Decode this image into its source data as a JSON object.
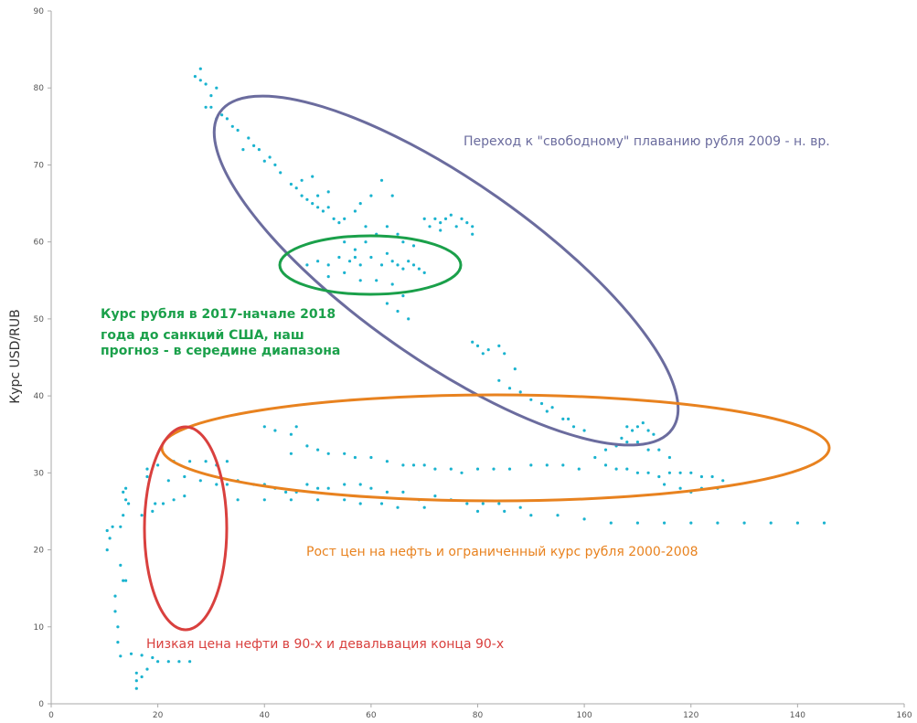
{
  "chart_data": {
    "type": "scatter",
    "title": "",
    "xlabel": "",
    "ylabel": "Курс USD/RUB",
    "xlim": [
      0,
      160
    ],
    "ylim": [
      0,
      90
    ],
    "x_ticks": [
      "0",
      "20",
      "40",
      "60",
      "80",
      "100",
      "120",
      "140",
      "160"
    ],
    "y_ticks": [
      "0",
      "10",
      "20",
      "30",
      "40",
      "50",
      "60",
      "70",
      "80",
      "90"
    ],
    "grid": false,
    "legend": "none",
    "point_color": "#1ab3cf",
    "series": [
      {
        "values": [
          [
            16,
            2
          ],
          [
            16,
            3
          ],
          [
            17,
            3.5
          ],
          [
            16,
            4
          ],
          [
            18,
            4.5
          ],
          [
            20,
            5.5
          ],
          [
            22,
            5.5
          ],
          [
            24,
            5.5
          ],
          [
            26,
            5.5
          ],
          [
            13,
            6.2
          ],
          [
            15,
            6.5
          ],
          [
            17,
            6.3
          ],
          [
            19,
            6
          ],
          [
            12.5,
            8
          ],
          [
            12.5,
            10
          ],
          [
            12,
            12
          ],
          [
            12,
            14
          ],
          [
            13.5,
            16
          ],
          [
            14,
            16
          ],
          [
            13,
            18
          ],
          [
            10.5,
            20
          ],
          [
            11,
            21.5
          ],
          [
            10.5,
            22.5
          ],
          [
            11.5,
            23
          ],
          [
            13,
            23
          ],
          [
            13.5,
            24.5
          ],
          [
            14.5,
            26
          ],
          [
            14,
            26.5
          ],
          [
            13.5,
            27.5
          ],
          [
            14,
            28
          ],
          [
            17,
            24.5
          ],
          [
            19,
            25
          ],
          [
            19.5,
            26
          ],
          [
            21,
            26
          ],
          [
            23,
            26.5
          ],
          [
            25,
            27
          ],
          [
            18,
            29.5
          ],
          [
            18,
            30.5
          ],
          [
            20,
            31
          ],
          [
            23,
            31.5
          ],
          [
            26,
            31.5
          ],
          [
            29,
            31.5
          ],
          [
            31,
            31
          ],
          [
            33,
            31.5
          ],
          [
            22,
            29
          ],
          [
            25,
            29.5
          ],
          [
            28,
            29
          ],
          [
            31,
            28.5
          ],
          [
            33,
            28.5
          ],
          [
            35,
            29
          ],
          [
            38,
            28.5
          ],
          [
            40,
            28.5
          ],
          [
            42,
            28
          ],
          [
            44,
            27.5
          ],
          [
            46,
            27.5
          ],
          [
            48,
            28.5
          ],
          [
            50,
            28
          ],
          [
            52,
            28
          ],
          [
            55,
            28.5
          ],
          [
            58,
            28.5
          ],
          [
            60,
            28
          ],
          [
            63,
            27.5
          ],
          [
            66,
            27.5
          ],
          [
            69,
            26.5
          ],
          [
            72,
            27
          ],
          [
            75,
            26.5
          ],
          [
            78,
            26
          ],
          [
            81,
            26
          ],
          [
            84,
            26
          ],
          [
            88,
            25.5
          ],
          [
            35,
            26.5
          ],
          [
            40,
            26.5
          ],
          [
            45,
            26.5
          ],
          [
            50,
            26.5
          ],
          [
            55,
            26.5
          ],
          [
            58,
            26
          ],
          [
            62,
            26
          ],
          [
            65,
            25.5
          ],
          [
            70,
            25.5
          ],
          [
            80,
            25
          ],
          [
            85,
            25
          ],
          [
            90,
            24.5
          ],
          [
            95,
            24.5
          ],
          [
            100,
            24
          ],
          [
            105,
            23.5
          ],
          [
            110,
            23.5
          ],
          [
            115,
            23.5
          ],
          [
            120,
            23.5
          ],
          [
            125,
            23.5
          ],
          [
            130,
            23.5
          ],
          [
            135,
            23.5
          ],
          [
            140,
            23.5
          ],
          [
            145,
            23.5
          ],
          [
            40,
            36
          ],
          [
            42,
            35.5
          ],
          [
            45,
            35
          ],
          [
            46,
            36
          ],
          [
            45,
            32.5
          ],
          [
            48,
            33.5
          ],
          [
            50,
            33
          ],
          [
            52,
            32.5
          ],
          [
            55,
            32.5
          ],
          [
            57,
            32
          ],
          [
            60,
            32
          ],
          [
            63,
            31.5
          ],
          [
            66,
            31
          ],
          [
            68,
            31
          ],
          [
            70,
            31
          ],
          [
            72,
            30.5
          ],
          [
            75,
            30.5
          ],
          [
            77,
            30
          ],
          [
            80,
            30.5
          ],
          [
            83,
            30.5
          ],
          [
            86,
            30.5
          ],
          [
            90,
            31
          ],
          [
            93,
            31
          ],
          [
            96,
            31
          ],
          [
            99,
            30.5
          ],
          [
            102,
            32
          ],
          [
            104,
            33
          ],
          [
            106,
            33.5
          ],
          [
            108,
            34
          ],
          [
            110,
            34
          ],
          [
            112,
            33
          ],
          [
            114,
            33
          ],
          [
            116,
            32
          ],
          [
            104,
            31
          ],
          [
            106,
            30.5
          ],
          [
            108,
            30.5
          ],
          [
            110,
            30
          ],
          [
            112,
            30
          ],
          [
            114,
            29.5
          ],
          [
            116,
            30
          ],
          [
            118,
            30
          ],
          [
            120,
            30
          ],
          [
            122,
            29.5
          ],
          [
            124,
            29.5
          ],
          [
            126,
            29
          ],
          [
            115,
            28.5
          ],
          [
            118,
            28
          ],
          [
            120,
            27.5
          ],
          [
            122,
            28
          ],
          [
            125,
            28
          ],
          [
            107,
            34.5
          ],
          [
            109,
            35.5
          ],
          [
            110,
            36
          ],
          [
            112,
            35.5
          ],
          [
            113,
            35
          ],
          [
            108,
            36
          ],
          [
            111,
            36.5
          ],
          [
            100,
            35.5
          ],
          [
            98,
            36
          ],
          [
            96,
            37
          ],
          [
            94,
            38.5
          ],
          [
            92,
            39
          ],
          [
            90,
            39.5
          ],
          [
            88,
            40.5
          ],
          [
            86,
            41
          ],
          [
            84,
            42
          ],
          [
            87,
            43.5
          ],
          [
            85,
            45.5
          ],
          [
            84,
            46.5
          ],
          [
            82,
            46
          ],
          [
            80,
            46.5
          ],
          [
            79,
            47
          ],
          [
            81,
            45.5
          ],
          [
            93,
            38
          ],
          [
            97,
            37
          ],
          [
            73,
            62.5
          ],
          [
            74,
            63
          ],
          [
            75,
            63.5
          ],
          [
            76,
            62
          ],
          [
            77,
            63
          ],
          [
            78,
            62.5
          ],
          [
            79,
            62
          ],
          [
            79,
            61
          ],
          [
            73,
            61.5
          ],
          [
            72,
            63
          ],
          [
            71,
            62
          ],
          [
            70,
            63
          ],
          [
            48,
            57
          ],
          [
            50,
            57.5
          ],
          [
            52,
            57
          ],
          [
            54,
            58
          ],
          [
            56,
            57.5
          ],
          [
            57,
            58
          ],
          [
            58,
            57
          ],
          [
            60,
            58
          ],
          [
            62,
            57
          ],
          [
            63,
            58.5
          ],
          [
            64,
            57.5
          ],
          [
            65,
            57
          ],
          [
            66,
            56.5
          ],
          [
            67,
            57.5
          ],
          [
            68,
            57
          ],
          [
            69,
            56.5
          ],
          [
            70,
            56
          ],
          [
            52,
            55.5
          ],
          [
            55,
            56
          ],
          [
            58,
            55
          ],
          [
            61,
            55
          ],
          [
            64,
            54.5
          ],
          [
            66,
            53
          ],
          [
            63,
            52
          ],
          [
            65,
            51
          ],
          [
            67,
            50
          ],
          [
            61,
            61
          ],
          [
            63,
            62
          ],
          [
            65,
            61
          ],
          [
            66,
            60
          ],
          [
            68,
            59.5
          ],
          [
            55,
            60
          ],
          [
            57,
            59
          ],
          [
            59,
            60
          ],
          [
            46,
            67
          ],
          [
            47,
            66
          ],
          [
            48,
            65.5
          ],
          [
            49,
            65
          ],
          [
            50,
            64.5
          ],
          [
            51,
            64
          ],
          [
            52,
            64.5
          ],
          [
            53,
            63
          ],
          [
            54,
            62.5
          ],
          [
            55,
            63
          ],
          [
            50,
            66
          ],
          [
            52,
            66.5
          ],
          [
            49,
            68.5
          ],
          [
            47,
            68
          ],
          [
            45,
            67.5
          ],
          [
            43,
            69
          ],
          [
            42,
            70
          ],
          [
            41,
            71
          ],
          [
            40,
            70.5
          ],
          [
            39,
            72
          ],
          [
            38,
            72.5
          ],
          [
            37,
            73.5
          ],
          [
            36,
            72
          ],
          [
            35,
            74.5
          ],
          [
            34,
            75
          ],
          [
            33,
            76
          ],
          [
            32,
            76.5
          ],
          [
            31,
            76
          ],
          [
            30,
            77.5
          ],
          [
            29,
            77.5
          ],
          [
            30,
            79
          ],
          [
            31,
            80
          ],
          [
            29,
            80.5
          ],
          [
            28,
            81
          ],
          [
            27,
            81.5
          ],
          [
            28,
            82.5
          ],
          [
            58,
            65
          ],
          [
            60,
            66
          ],
          [
            57,
            64
          ],
          [
            59,
            62
          ],
          [
            62,
            68
          ],
          [
            64,
            66
          ]
        ]
      }
    ],
    "annotations": [
      {
        "text": "Переход к \"свободному\" плаванию рубля 2009 - н. вр.",
        "color": "#6b6c9e"
      },
      {
        "lines": [
          "Курс рубля в 2017-начале 2018",
          "года до санкций США, наш",
          "прогноз - в середине диапазона"
        ],
        "color": "#1aa04a"
      },
      {
        "text": "Рост цен на нефть и ограниченный курс рубля 2000-2008",
        "color": "#e8821f"
      },
      {
        "text": "Низкая цена нефти в 90-х и девальвация конца 90-х",
        "color": "#d9403e"
      }
    ],
    "ellipse_colors": {
      "free_float": "#6b6c9e",
      "forecast_2017": "#1aa04a",
      "oil_2000_2008": "#e8821f",
      "nineties": "#d9403e"
    }
  }
}
